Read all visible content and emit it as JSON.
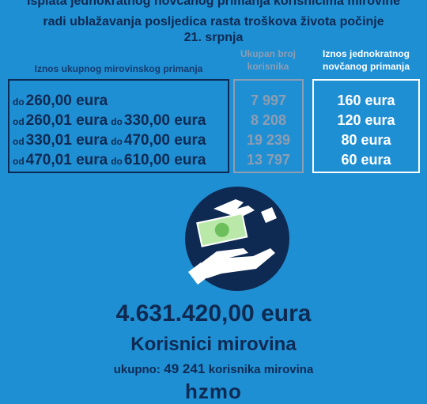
{
  "header": {
    "title_lines": [
      "Isplata jednokratnog novčanog primanja korisnicima mirovine",
      "radi ublažavanja posljedica rasta troškova života počinje",
      "21. srpnja"
    ]
  },
  "table": {
    "headers": [
      "Iznos ukupnog mirovinskog primanja",
      "Ukupan broj korisnika",
      "Iznos jednokratnog novčanog primanja"
    ],
    "rows": [
      {
        "range": [
          "do",
          "260,00 eura"
        ],
        "count": "7 997",
        "payment": "160 eura"
      },
      {
        "range": [
          "od",
          "260,01 eura",
          "do",
          "330,00 eura"
        ],
        "count": "8 208",
        "payment": "120 eura"
      },
      {
        "range": [
          "od",
          "330,01 eura",
          "do",
          "470,00 eura"
        ],
        "count": "19 239",
        "payment": "80 eura"
      },
      {
        "range": [
          "od",
          "470,01 eura",
          "do",
          "610,00 eura"
        ],
        "count": "13 797",
        "payment": "60 eura"
      }
    ]
  },
  "summary": {
    "total_amount": "4.631.420,00 eura",
    "title": "Korisnici mirovina",
    "count_label": "ukupno:",
    "count": "49 241",
    "count_unit": "korisnika mirovina"
  },
  "footer": {
    "logo": "hzmo"
  }
}
